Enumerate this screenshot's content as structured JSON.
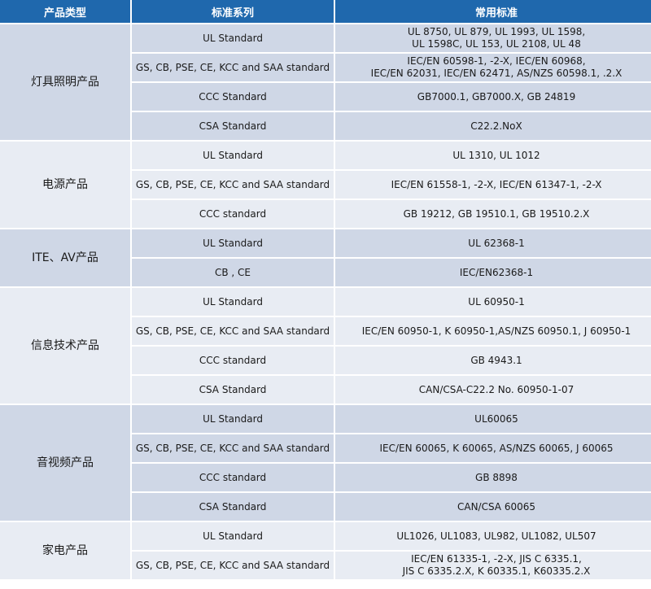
{
  "header": {
    "col1": "产品类型",
    "col2": "标准系列",
    "col3": "常用标准"
  },
  "colors": {
    "header_bg": "#1f68ad",
    "row_dark": "#cfd7e6",
    "row_light": "#e8ecf3"
  },
  "groups": [
    {
      "category": "灯具照明产品",
      "rows": [
        {
          "series": "UL Standard",
          "standards": "UL 8750, UL 879,  UL 1993, UL 1598,\nUL 1598C, UL 153, UL 2108, UL 48"
        },
        {
          "series": "GS, CB, PSE, CE, KCC and SAA standard",
          "standards": "IEC/EN 60598-1, -2-X, IEC/EN 60968,\nIEC/EN 62031, IEC/EN 62471, AS/NZS 60598.1, .2.X"
        },
        {
          "series": "CCC Standard",
          "standards": "GB7000.1, GB7000.X, GB 24819"
        },
        {
          "series": "CSA Standard",
          "standards": "C22.2.NoX"
        }
      ]
    },
    {
      "category": "电源产品",
      "rows": [
        {
          "series": "UL Standard",
          "standards": "UL 1310, UL 1012"
        },
        {
          "series": "GS, CB, PSE, CE, KCC and SAA standard",
          "standards": "IEC/EN 61558-1, -2-X, IEC/EN 61347-1, -2-X"
        },
        {
          "series": "CCC standard",
          "standards": "GB 19212, GB 19510.1, GB 19510.2.X"
        }
      ]
    },
    {
      "category": "ITE、AV产品",
      "rows": [
        {
          "series": "UL Standard",
          "standards": "UL 62368-1"
        },
        {
          "series": "CB , CE",
          "standards": "IEC/EN62368-1"
        }
      ]
    },
    {
      "category": "信息技术产品",
      "rows": [
        {
          "series": "UL Standard",
          "standards": "UL 60950-1"
        },
        {
          "series": "GS, CB, PSE, CE, KCC and SAA standard",
          "standards": "IEC/EN 60950-1, K 60950-1,AS/NZS 60950.1, J 60950-1"
        },
        {
          "series": "CCC standard",
          "standards": "GB 4943.1"
        },
        {
          "series": "CSA Standard",
          "standards": "CAN/CSA-C22.2 No. 60950-1-07"
        }
      ]
    },
    {
      "category": "音视频产品",
      "rows": [
        {
          "series": "UL Standard",
          "standards": "UL60065"
        },
        {
          "series": "GS, CB, PSE, CE, KCC and SAA standard",
          "standards": "IEC/EN 60065, K 60065, AS/NZS 60065, J 60065"
        },
        {
          "series": "CCC standard",
          "standards": "GB 8898"
        },
        {
          "series": "CSA Standard",
          "standards": "CAN/CSA 60065"
        }
      ]
    },
    {
      "category": "家电产品",
      "rows": [
        {
          "series": "UL Standard",
          "standards": "UL1026, UL1083, UL982, UL1082, UL507"
        },
        {
          "series": "GS, CB, PSE, CE, KCC and SAA standard",
          "standards": "IEC/EN 61335-1, -2-X, JIS C 6335.1,\nJIS C 6335.2.X, K 60335.1, K60335.2.X"
        }
      ]
    }
  ]
}
